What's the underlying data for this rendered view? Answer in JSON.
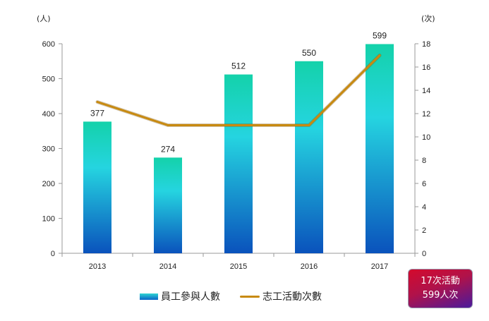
{
  "chart_data": {
    "type": "bar+line",
    "categories": [
      "2013",
      "2014",
      "2015",
      "2016",
      "2017"
    ],
    "series": [
      {
        "name": "員工參與人數",
        "type": "bar",
        "axis": "left",
        "values": [
          377,
          274,
          512,
          550,
          599
        ],
        "labels": [
          "377",
          "274",
          "512",
          "550",
          "599"
        ]
      },
      {
        "name": "志工活動次數",
        "type": "line",
        "axis": "right",
        "values": [
          13,
          11,
          11,
          11,
          17
        ]
      }
    ],
    "y_left": {
      "unit": "(人)",
      "range": [
        0,
        600
      ],
      "ticks": [
        "0",
        "100",
        "200",
        "300",
        "400",
        "500",
        "600"
      ]
    },
    "y_right": {
      "unit": "(次)",
      "range": [
        0,
        18
      ],
      "ticks": [
        "0",
        "2",
        "4",
        "6",
        "8",
        "10",
        "12",
        "14",
        "16",
        "18"
      ]
    },
    "grid": false,
    "legend_position": "bottom",
    "colors": {
      "bar_top": "#2fd6c2",
      "bar_mid": "#22d2e0",
      "bar_bottom": "#0a58c0",
      "line": "#c88a10"
    }
  },
  "badge": {
    "line1": "17次活動",
    "line2": "599人次"
  }
}
